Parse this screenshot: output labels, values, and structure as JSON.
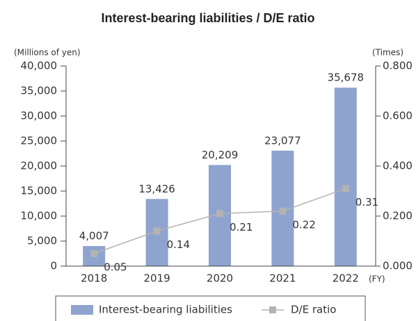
{
  "chart_data": {
    "type": "bar_line",
    "title": "Interest-bearing liabilities / D/E ratio",
    "y_label": "(Millions of yen)",
    "y2_label": "(Times)",
    "x_label": "(FY)",
    "categories": [
      "2018",
      "2019",
      "2020",
      "2021",
      "2022"
    ],
    "series": [
      {
        "name": "Interest-bearing liabilities",
        "type": "bar",
        "color": "#8fa3cf",
        "axis": "y",
        "values": [
          4007,
          13426,
          20209,
          23077,
          35678
        ],
        "value_labels": [
          "4,007",
          "13,426",
          "20,209",
          "23,077",
          "35,678"
        ]
      },
      {
        "name": "D/E ratio",
        "type": "line",
        "color": "#b3b3b3",
        "axis": "y2",
        "values": [
          0.05,
          0.14,
          0.21,
          0.22,
          0.31
        ]
      }
    ],
    "ylim": [
      0,
      40000
    ],
    "yticks": [
      0,
      {
        "value": 5000,
        "label": "5,000"
      },
      {
        "value": 10000,
        "label": "10,000"
      },
      {
        "value": 15000,
        "label": "15,000"
      },
      {
        "value": 20000,
        "label": "20,000"
      },
      {
        "value": 25000,
        "label": "25,000"
      },
      {
        "value": 30000,
        "label": "30,000"
      },
      {
        "value": 35000,
        "label": "35,000"
      },
      {
        "value": 40000,
        "label": "40,000"
      }
    ],
    "y2lim": [
      0,
      0.8
    ],
    "y2ticks": [
      {
        "value": 0,
        "label": "0.000"
      },
      {
        "value": 0.2,
        "label": "0.200"
      },
      {
        "value": 0.4,
        "label": "0.400"
      },
      {
        "value": 0.6,
        "label": "0.600"
      },
      {
        "value": 0.8,
        "label": "0.800"
      }
    ],
    "legend": "bottom"
  }
}
